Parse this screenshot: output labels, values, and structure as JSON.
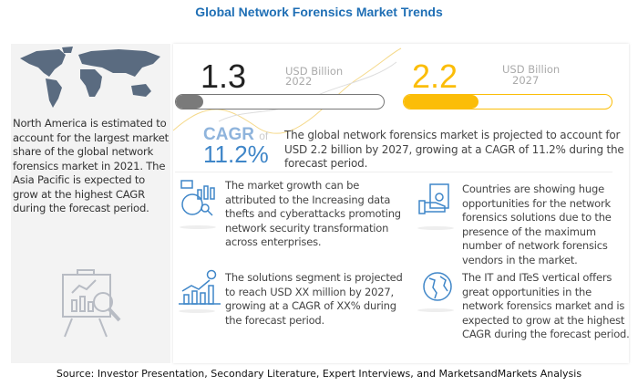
{
  "title": "Global Network Forensics Market Trends",
  "left": {
    "text": "North America is estimated to account for the largest market share of the global network forensics market in 2021. The Asia Pacific is expected to grow at the highest CAGR during the forecast period.",
    "map_icon": "world-map-icon",
    "chart_icon": "presentation-analytics-icon"
  },
  "metrics": {
    "start": {
      "value": "1.3",
      "unit": "USD Billion",
      "year": "2022",
      "fill": 0.13,
      "color": "#7a7a7a"
    },
    "end": {
      "value": "2.2",
      "unit": "USD Billion",
      "year": "2027",
      "fill": 0.36,
      "color": "#fbbd08"
    }
  },
  "cagr": {
    "label": "CAGR",
    "of": "of",
    "value": "11.2%",
    "color": "#3f86c8",
    "text": "The global network forensics market is projected to account for USD 2.2 billion  by 2027, growing at a CAGR of 11.2% during the forecast period."
  },
  "insights": [
    {
      "icon": "analytics-magnifier-icon",
      "text": "The market growth can be attributed to the Increasing data thefts and cyberattacks promoting network security transformation across enterprises."
    },
    {
      "icon": "money-hand-icon",
      "text": "Countries are showing huge opportunities for the network forensics solutions due to the presence of the maximum number of network forensics vendors in the market."
    },
    {
      "icon": "growth-chart-dollar-icon",
      "text": "The solutions segment is projected to reach USD XX million  by 2027, growing at a CAGR of XX% during the forecast period."
    },
    {
      "icon": "globe-icon",
      "text": "The IT and ITeS vertical offers great opportunities in the network forensics market and is expected to grow at the highest CAGR during the forecast period."
    }
  ],
  "source": "Source: Investor Presentation, Secondary Literature, Expert Interviews, and MarketsandMarkets Analysis"
}
